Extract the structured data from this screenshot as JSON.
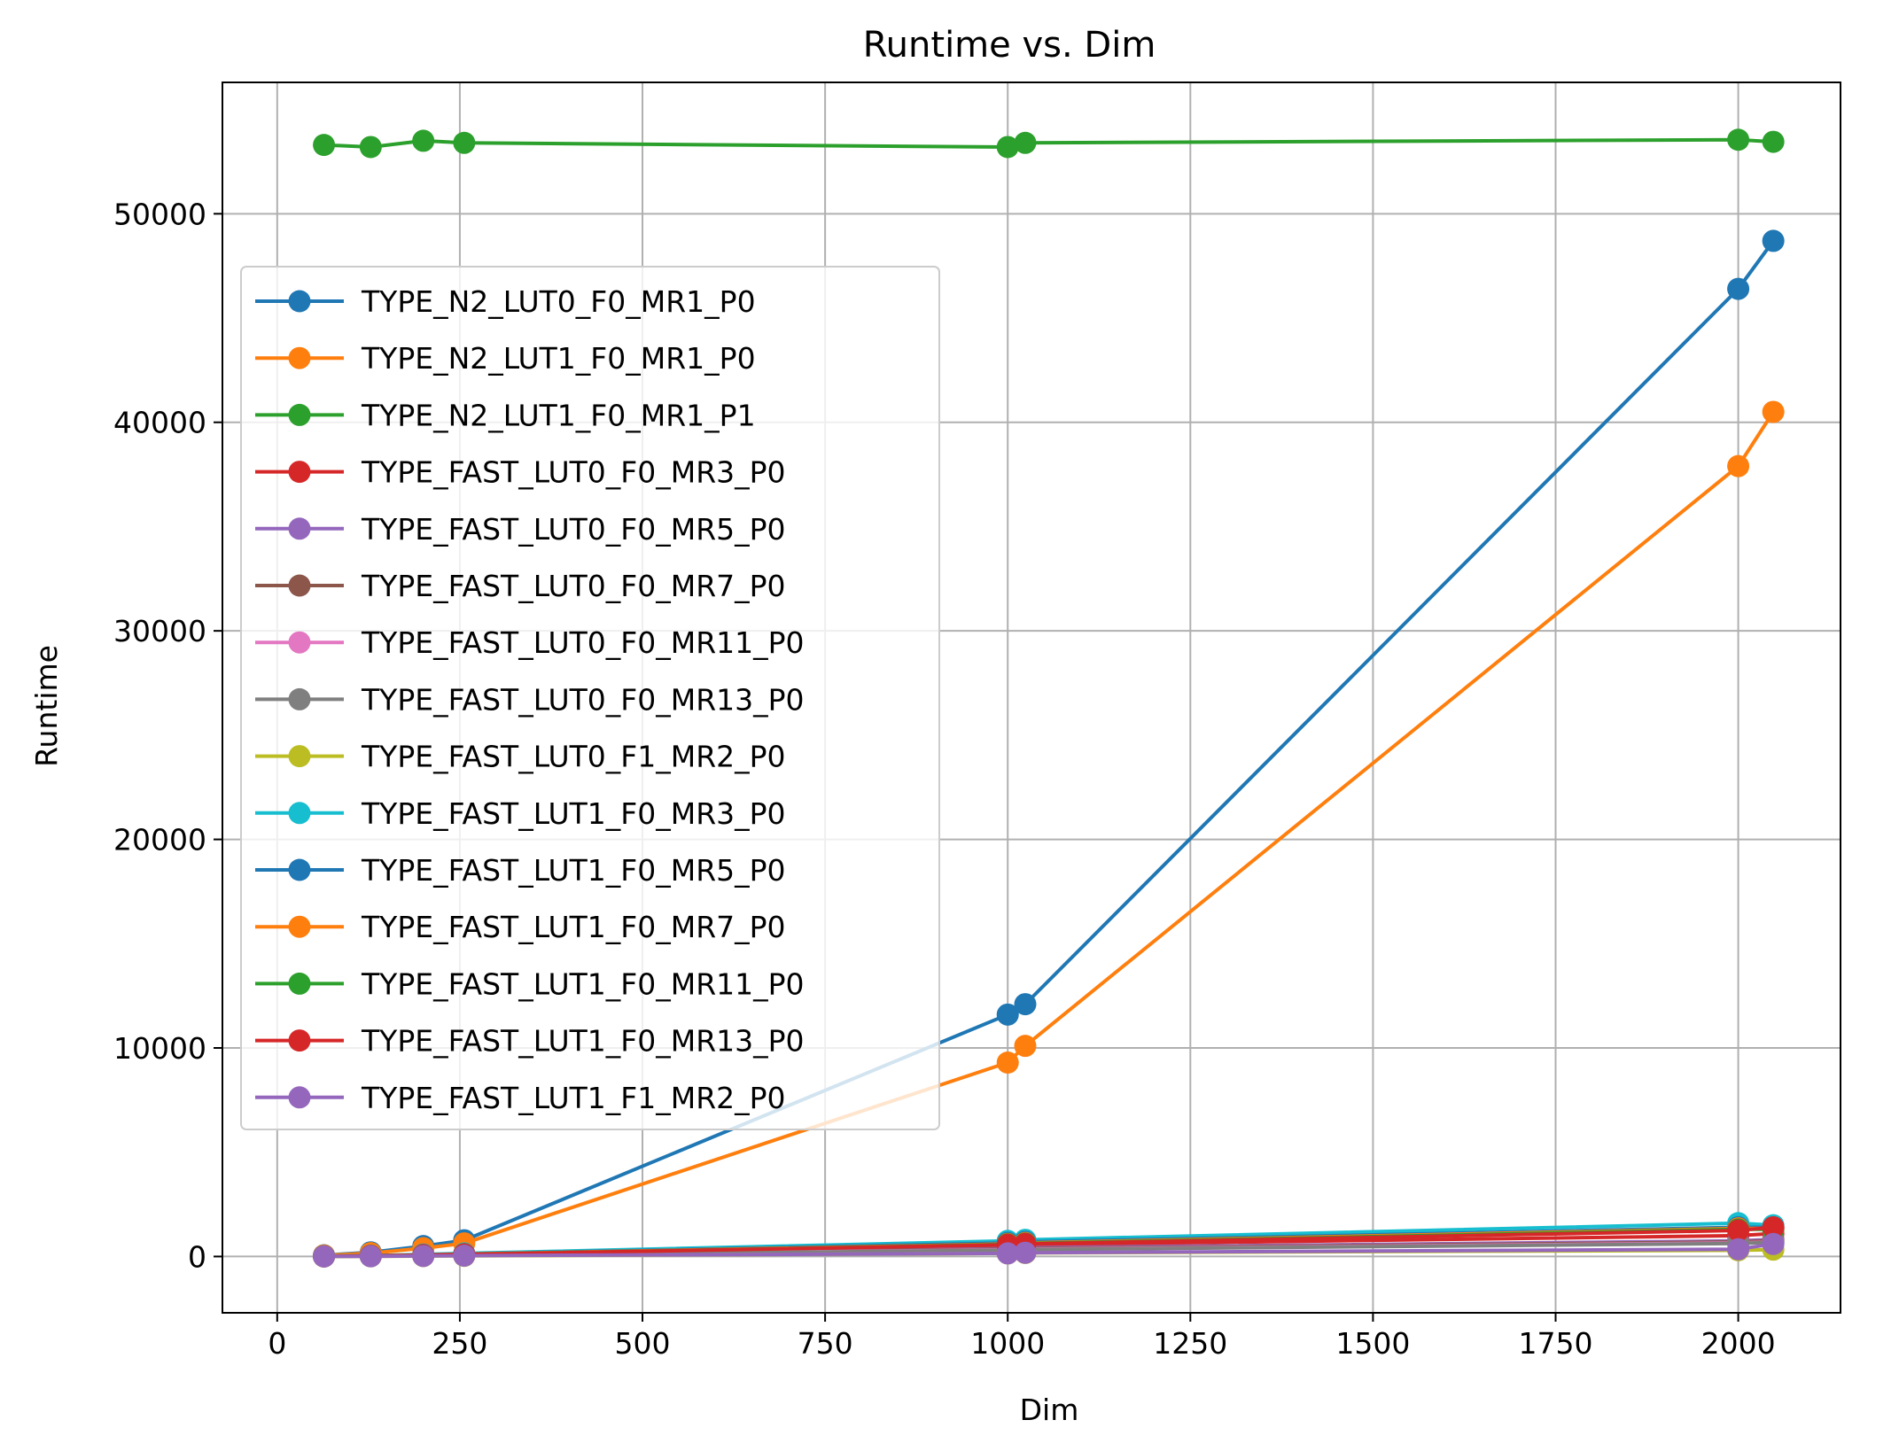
{
  "chart_data": {
    "type": "line",
    "title": "Runtime vs. Dim",
    "xlabel": "Dim",
    "ylabel": "Runtime",
    "xlim": [
      -75,
      2140
    ],
    "ylim": [
      -2700,
      56300
    ],
    "xticks": [
      0,
      250,
      500,
      750,
      1000,
      1250,
      1500,
      1750,
      2000
    ],
    "yticks": [
      0,
      10000,
      20000,
      30000,
      40000,
      50000
    ],
    "grid": true,
    "legend_position": "upper-left",
    "x": [
      64,
      128,
      200,
      256,
      1000,
      1024,
      2000,
      2048
    ],
    "series": [
      {
        "name": "TYPE_N2_LUT0_F0_MR1_P0",
        "color": "#1f77b4",
        "values": [
          60,
          200,
          500,
          780,
          11600,
          12100,
          46400,
          48700
        ]
      },
      {
        "name": "TYPE_N2_LUT1_F0_MR1_P0",
        "color": "#ff7f0e",
        "values": [
          50,
          160,
          400,
          630,
          9300,
          10100,
          37900,
          40500
        ]
      },
      {
        "name": "TYPE_N2_LUT1_F0_MR1_P1",
        "color": "#2ca02c",
        "values": [
          53300,
          53200,
          53500,
          53400,
          53200,
          53400,
          53550,
          53450
        ]
      },
      {
        "name": "TYPE_FAST_LUT0_F0_MR3_P0",
        "color": "#d62728",
        "values": [
          10,
          30,
          60,
          90,
          500,
          560,
          1000,
          1100
        ]
      },
      {
        "name": "TYPE_FAST_LUT0_F0_MR5_P0",
        "color": "#9467bd",
        "values": [
          8,
          25,
          50,
          70,
          380,
          420,
          750,
          820
        ]
      },
      {
        "name": "TYPE_FAST_LUT0_F0_MR7_P0",
        "color": "#8c564b",
        "values": [
          8,
          25,
          45,
          65,
          350,
          380,
          700,
          760
        ]
      },
      {
        "name": "TYPE_FAST_LUT0_F0_MR11_P0",
        "color": "#e377c2",
        "values": [
          7,
          22,
          40,
          60,
          320,
          350,
          650,
          700
        ]
      },
      {
        "name": "TYPE_FAST_LUT0_F0_MR13_P0",
        "color": "#7f7f7f",
        "values": [
          7,
          20,
          38,
          55,
          300,
          330,
          620,
          680
        ]
      },
      {
        "name": "TYPE_FAST_LUT0_F1_MR2_P0",
        "color": "#bcbd22",
        "values": [
          3,
          10,
          20,
          30,
          150,
          170,
          300,
          330
        ]
      },
      {
        "name": "TYPE_FAST_LUT1_F0_MR3_P0",
        "color": "#17becf",
        "values": [
          15,
          45,
          100,
          150,
          750,
          800,
          1600,
          1500
        ]
      },
      {
        "name": "TYPE_FAST_LUT1_F0_MR5_P0",
        "color": "#1f77b4",
        "values": [
          12,
          35,
          80,
          120,
          650,
          700,
          1400,
          1400
        ]
      },
      {
        "name": "TYPE_FAST_LUT1_F0_MR7_P0",
        "color": "#ff7f0e",
        "values": [
          10,
          32,
          70,
          110,
          600,
          650,
          1350,
          1350
        ]
      },
      {
        "name": "TYPE_FAST_LUT1_F0_MR11_P0",
        "color": "#2ca02c",
        "values": [
          10,
          30,
          65,
          100,
          580,
          620,
          1300,
          1300
        ]
      },
      {
        "name": "TYPE_FAST_LUT1_F0_MR13_P0",
        "color": "#d62728",
        "values": [
          10,
          30,
          65,
          100,
          560,
          600,
          1250,
          1400
        ]
      },
      {
        "name": "TYPE_FAST_LUT1_F1_MR2_P0",
        "color": "#9467bd",
        "values": [
          4,
          12,
          25,
          40,
          150,
          180,
          350,
          600
        ]
      }
    ]
  }
}
